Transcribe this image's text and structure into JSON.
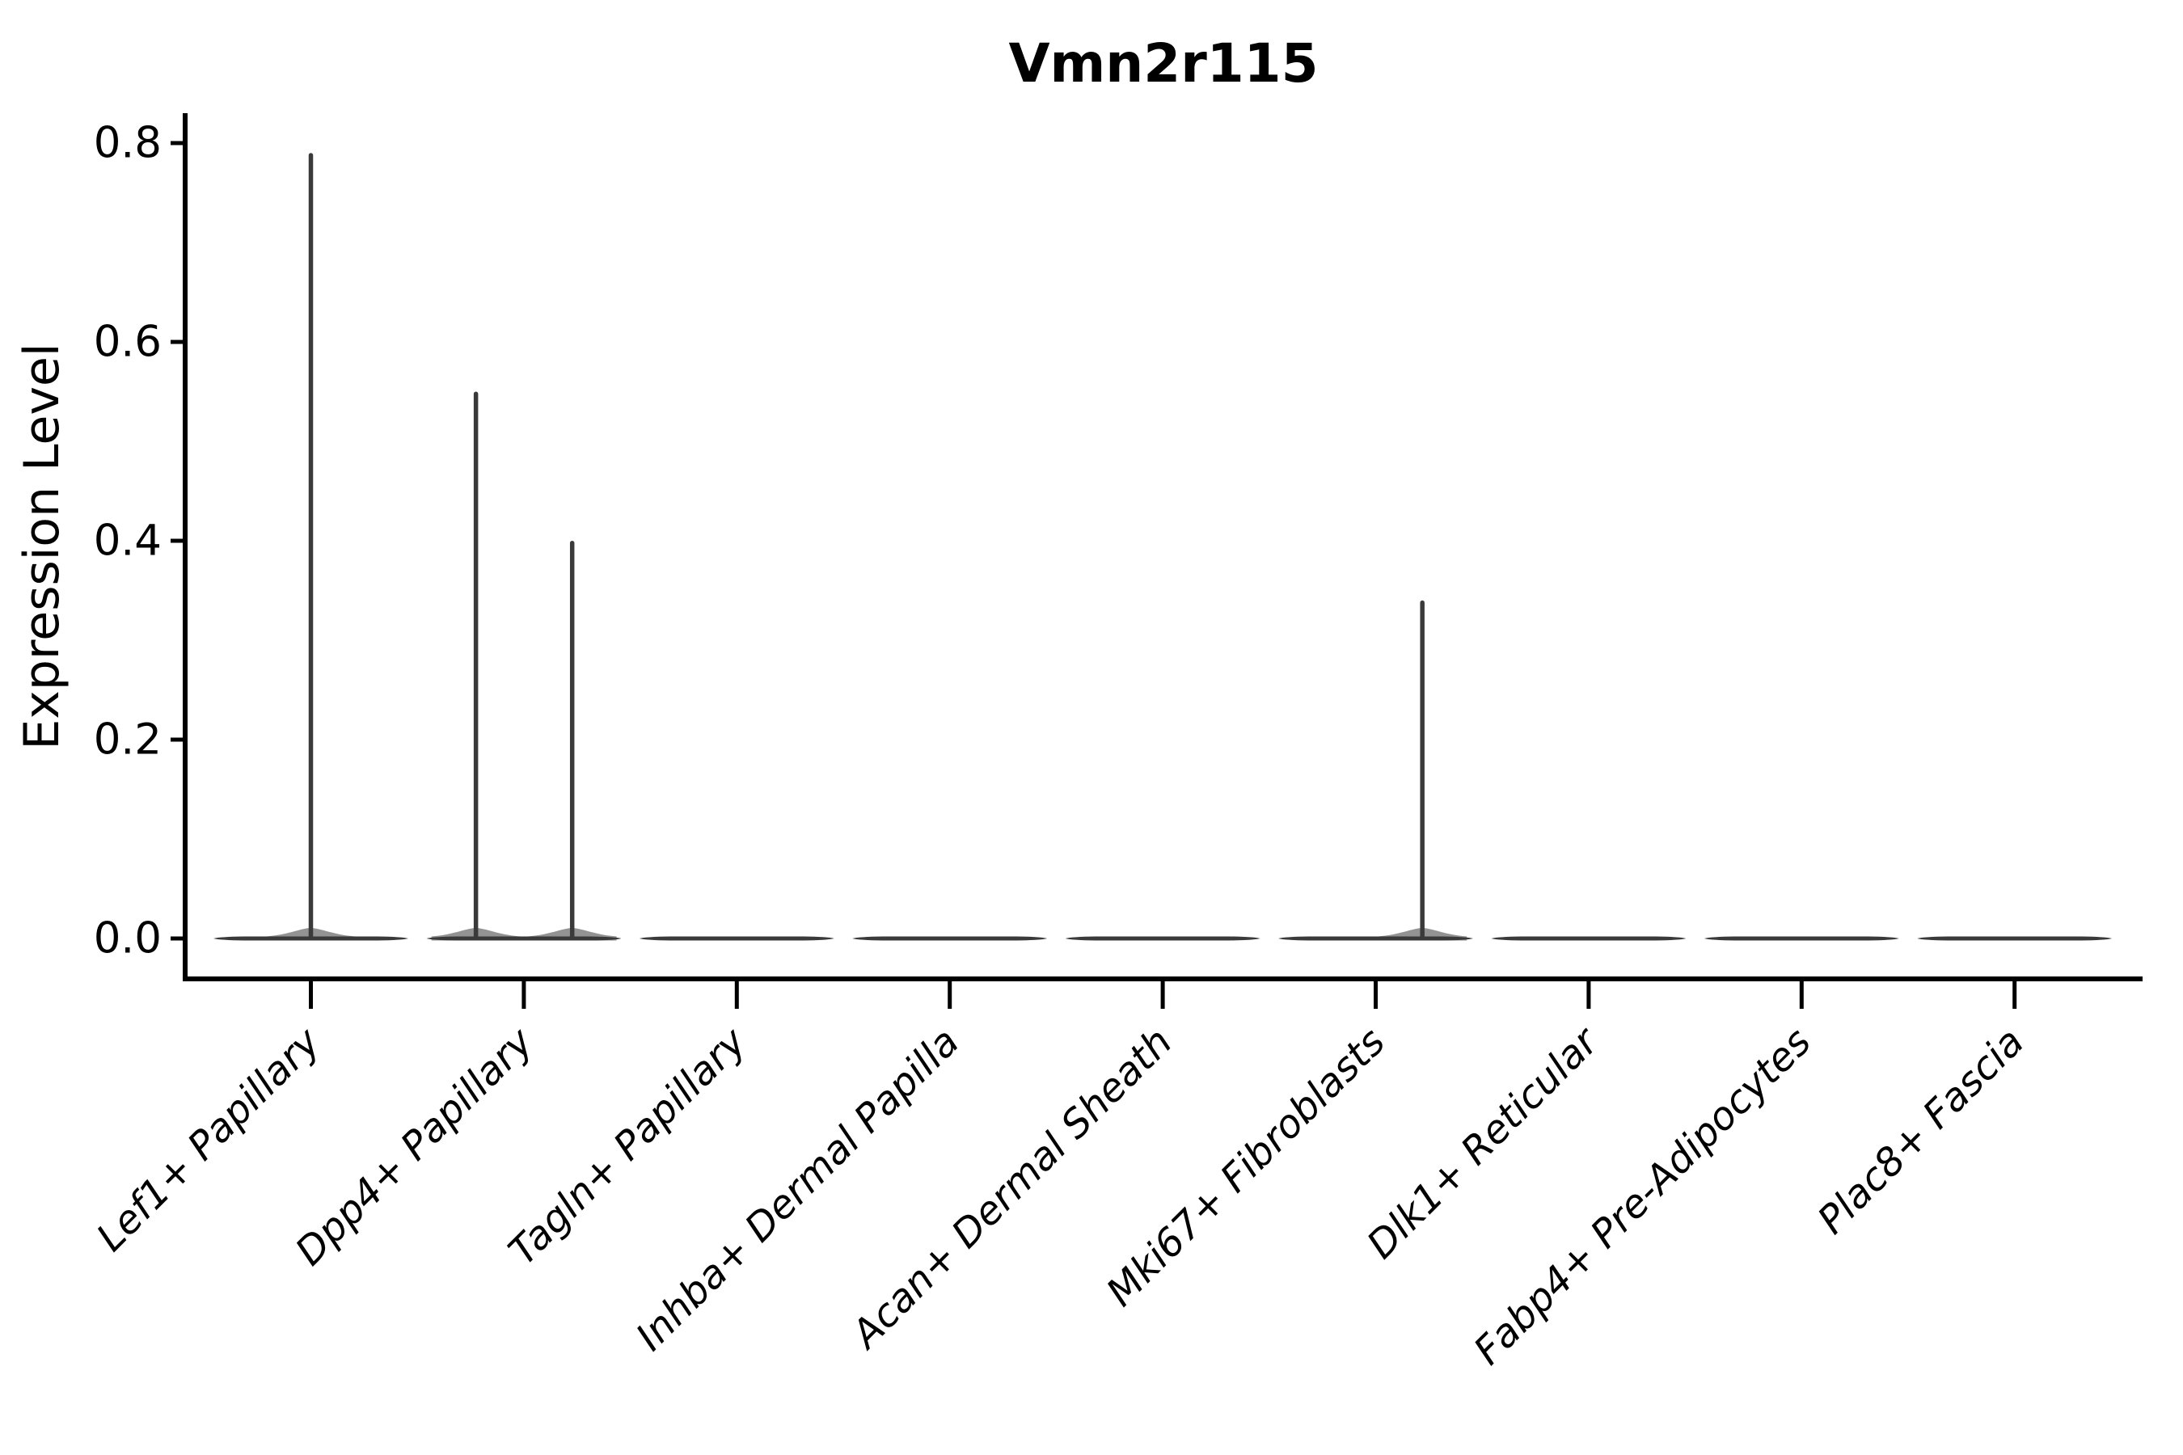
{
  "title": "Vmn2r115",
  "y_axis": {
    "label": "Expression Level",
    "tick_labels": [
      "0.0",
      "0.2",
      "0.4",
      "0.6",
      "0.8"
    ]
  },
  "x_axis": {
    "categories": [
      "Lef1+ Papillary",
      "Dpp4+ Papillary",
      "Tagln+ Papillary",
      "Inhba+ Dermal Papilla",
      "Acan+ Dermal Sheath",
      "Mki67+ Fibroblasts",
      "Dlk1+ Reticular",
      "Fabp4+ Pre-Adipocytes",
      "Plac8+ Fascia"
    ]
  },
  "chart_data": {
    "type": "violin",
    "title": "Vmn2r115",
    "xlabel": "",
    "ylabel": "Expression Level",
    "ylim": [
      0,
      0.83
    ],
    "y_ticks": [
      0.0,
      0.2,
      0.4,
      0.6,
      0.8
    ],
    "grid": false,
    "legend": false,
    "categories": [
      "Lef1+ Papillary",
      "Dpp4+ Papillary",
      "Tagln+ Papillary",
      "Inhba+ Dermal Papilla",
      "Acan+ Dermal Sheath",
      "Mki67+ Fibroblasts",
      "Dlk1+ Reticular",
      "Fabp4+ Pre-Adipocytes",
      "Plac8+ Fascia"
    ],
    "violins": [
      {
        "category": "Lef1+ Papillary",
        "baseline_value": 0.0,
        "spikes": [
          {
            "x_offset_frac": 0.0,
            "peak": 0.79
          }
        ]
      },
      {
        "category": "Dpp4+ Papillary",
        "baseline_value": 0.0,
        "spikes": [
          {
            "x_offset_frac": -0.225,
            "peak": 0.55
          },
          {
            "x_offset_frac": 0.227,
            "peak": 0.4
          }
        ]
      },
      {
        "category": "Tagln+ Papillary",
        "baseline_value": 0.0,
        "spikes": []
      },
      {
        "category": "Inhba+ Dermal Papilla",
        "baseline_value": 0.0,
        "spikes": []
      },
      {
        "category": "Acan+ Dermal Sheath",
        "baseline_value": 0.0,
        "spikes": []
      },
      {
        "category": "Mki67+ Fibroblasts",
        "baseline_value": 0.0,
        "spikes": [
          {
            "x_offset_frac": 0.219,
            "peak": 0.34
          }
        ]
      },
      {
        "category": "Dlk1+ Reticular",
        "baseline_value": 0.0,
        "spikes": []
      },
      {
        "category": "Fabp4+ Pre-Adipocytes",
        "baseline_value": 0.0,
        "spikes": []
      },
      {
        "category": "Plac8+ Fascia",
        "baseline_value": 0.0,
        "spikes": []
      }
    ]
  },
  "style": {
    "violin_color": "#3a3a3a",
    "axis_color": "#000000",
    "text_color": "#000000",
    "background": "#ffffff"
  }
}
